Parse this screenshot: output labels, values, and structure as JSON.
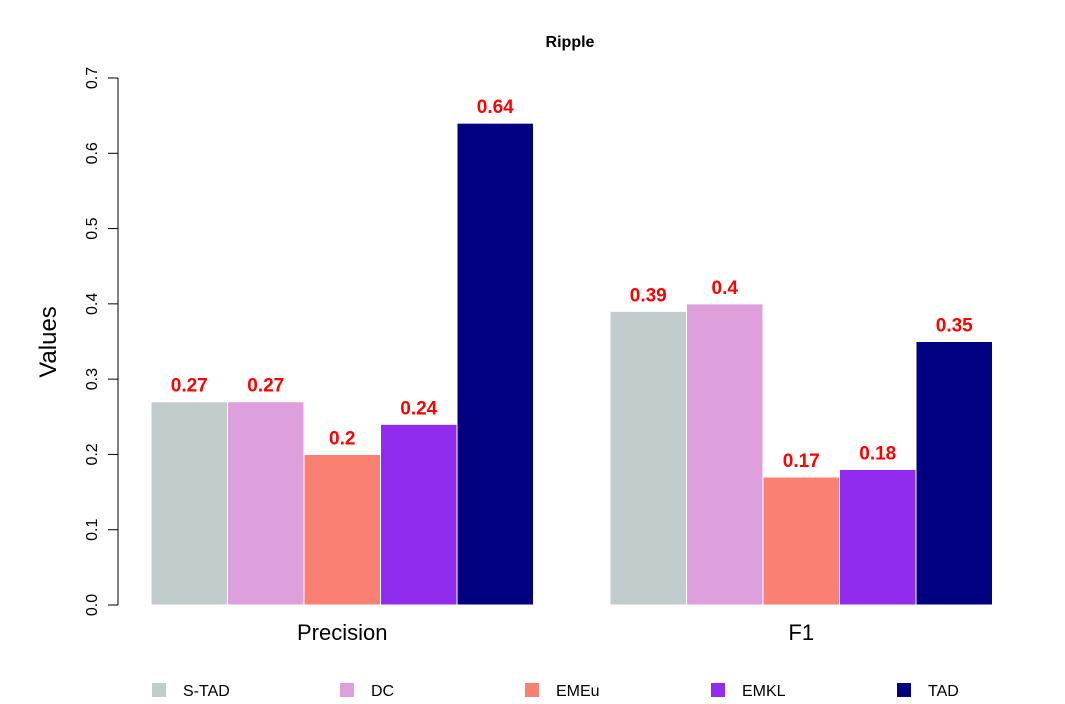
{
  "chart_data": {
    "type": "bar",
    "title": "Ripple",
    "xlabel": "",
    "ylabel": "Values",
    "ylim": [
      0,
      0.7
    ],
    "yticks": [
      "0.0",
      "0.1",
      "0.2",
      "0.3",
      "0.4",
      "0.5",
      "0.6",
      "0.7"
    ],
    "categories": [
      "Precision",
      "F1"
    ],
    "series": [
      {
        "name": "S-TAD",
        "color": "#c1cdcd",
        "values": [
          0.27,
          0.39
        ],
        "labels": [
          "0.27",
          "0.39"
        ]
      },
      {
        "name": "DC",
        "color": "#dda0dd",
        "values": [
          0.27,
          0.4
        ],
        "labels": [
          "0.27",
          "0.4"
        ]
      },
      {
        "name": "EMEu",
        "color": "#fa8072",
        "values": [
          0.2,
          0.17
        ],
        "labels": [
          "0.2",
          "0.17"
        ]
      },
      {
        "name": "EMKL",
        "color": "#912cee",
        "values": [
          0.24,
          0.18
        ],
        "labels": [
          "0.24",
          "0.18"
        ]
      },
      {
        "name": "TAD",
        "color": "#000080",
        "values": [
          0.64,
          0.35
        ],
        "labels": [
          "0.64",
          "0.35"
        ]
      }
    ],
    "legend_position": "bottom",
    "grid": false
  }
}
